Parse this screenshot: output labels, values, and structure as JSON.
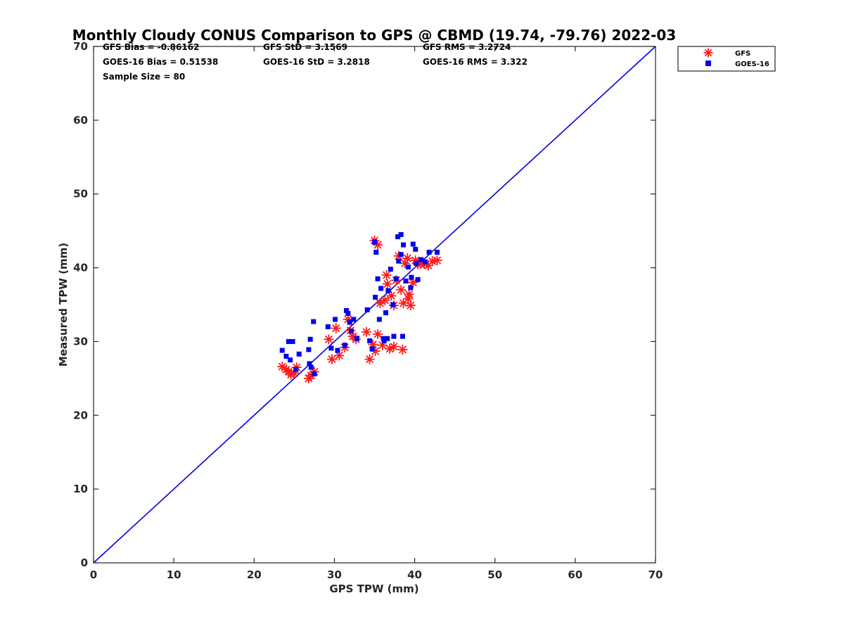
{
  "chart_data": {
    "type": "scatter",
    "title": "Monthly Cloudy CONUS Comparison to GPS @ CBMD (19.74, -79.76) 2022-03",
    "xlabel": "GPS TPW (mm)",
    "ylabel": "Measured TPW (mm)",
    "xlim": [
      0,
      70
    ],
    "ylim": [
      0,
      70
    ],
    "xticks": [
      "0",
      "10",
      "20",
      "30",
      "40",
      "50",
      "60",
      "70"
    ],
    "yticks": [
      "0",
      "10",
      "20",
      "30",
      "40",
      "50",
      "60",
      "70"
    ],
    "grid": false,
    "legend_position": "outside-top-right",
    "stats": {
      "gfs_bias": "GFS Bias = -0.86162",
      "goes_bias": "GOES-16 Bias = 0.51538",
      "sample_size": "Sample Size = 80",
      "gfs_std": "GFS StD = 3.1569",
      "goes_std": "GOES-16 StD = 3.2818",
      "gfs_rms": "GFS RMS = 3.2724",
      "goes_rms": "GOES-16 RMS = 3.322"
    },
    "reference_line": {
      "x": [
        0,
        70
      ],
      "y": [
        0,
        70
      ],
      "color": "#0000dd"
    },
    "series": [
      {
        "name": "GFS",
        "marker": "asterisk",
        "color": "#ff1a1a",
        "x": [
          23.5,
          24.0,
          24.3,
          24.6,
          25.0,
          25.3,
          26.8,
          27.1,
          27.5,
          29.3,
          29.7,
          30.2,
          30.6,
          31.3,
          31.7,
          32.0,
          32.3,
          32.7,
          34.0,
          34.4,
          34.8,
          35.1,
          35.4,
          35.7,
          36.0,
          36.3,
          36.6,
          36.9,
          37.1,
          37.4,
          37.7,
          38.0,
          38.3,
          38.6,
          38.8,
          39.1,
          39.3,
          39.5,
          39.8,
          40.1,
          40.4,
          40.7,
          41.2,
          41.7,
          42.2,
          42.8,
          35.0,
          35.4,
          38.5,
          39.2,
          36.5,
          37.4
        ],
        "y": [
          26.6,
          26.2,
          25.9,
          25.5,
          25.7,
          26.5,
          25.0,
          25.4,
          25.9,
          30.3,
          27.6,
          31.8,
          28.1,
          29.2,
          33.0,
          31.5,
          30.7,
          30.3,
          31.3,
          27.6,
          29.6,
          28.7,
          31.0,
          35.2,
          29.5,
          35.6,
          37.8,
          29.0,
          36.2,
          34.9,
          38.3,
          41.6,
          37.0,
          35.2,
          40.6,
          41.3,
          36.4,
          34.9,
          38.0,
          41.0,
          40.5,
          40.5,
          40.5,
          40.3,
          40.9,
          41.0,
          43.7,
          43.1,
          28.9,
          35.8,
          39.0,
          29.3
        ]
      },
      {
        "name": "GOES-16",
        "marker": "square",
        "color": "#0000ee",
        "x": [
          23.5,
          24.0,
          24.3,
          24.5,
          24.8,
          25.2,
          25.6,
          26.9,
          27.1,
          27.4,
          27.0,
          26.8,
          27.5,
          29.2,
          29.6,
          30.1,
          30.4,
          31.3,
          31.5,
          31.7,
          31.9,
          32.1,
          32.4,
          32.8,
          34.1,
          34.4,
          34.7,
          35.0,
          35.2,
          35.4,
          35.6,
          36.1,
          36.4,
          36.7,
          37.0,
          37.3,
          37.7,
          38.0,
          38.3,
          38.6,
          38.9,
          39.2,
          39.5,
          39.8,
          40.1,
          40.4,
          40.8,
          41.3,
          41.8,
          42.8,
          37.9,
          38.3,
          35.1,
          36.6,
          37.4,
          38.5,
          39.6,
          40.2,
          35.8,
          36.2
        ],
        "y": [
          28.8,
          28.0,
          30.0,
          27.5,
          30.0,
          26.2,
          28.3,
          27.0,
          26.5,
          32.7,
          30.3,
          28.9,
          25.6,
          32.0,
          29.1,
          33.0,
          28.8,
          29.5,
          34.2,
          33.8,
          32.6,
          31.4,
          33.0,
          30.4,
          34.3,
          30.1,
          29.0,
          43.5,
          42.1,
          38.5,
          33.0,
          30.4,
          33.9,
          36.9,
          39.8,
          35.0,
          38.5,
          40.9,
          41.8,
          43.1,
          38.2,
          40.1,
          37.3,
          43.2,
          42.5,
          38.4,
          41.1,
          40.8,
          42.1,
          42.1,
          44.2,
          44.5,
          36.0,
          30.4,
          30.7,
          30.7,
          38.7,
          40.6,
          37.2,
          30.1
        ]
      }
    ]
  }
}
